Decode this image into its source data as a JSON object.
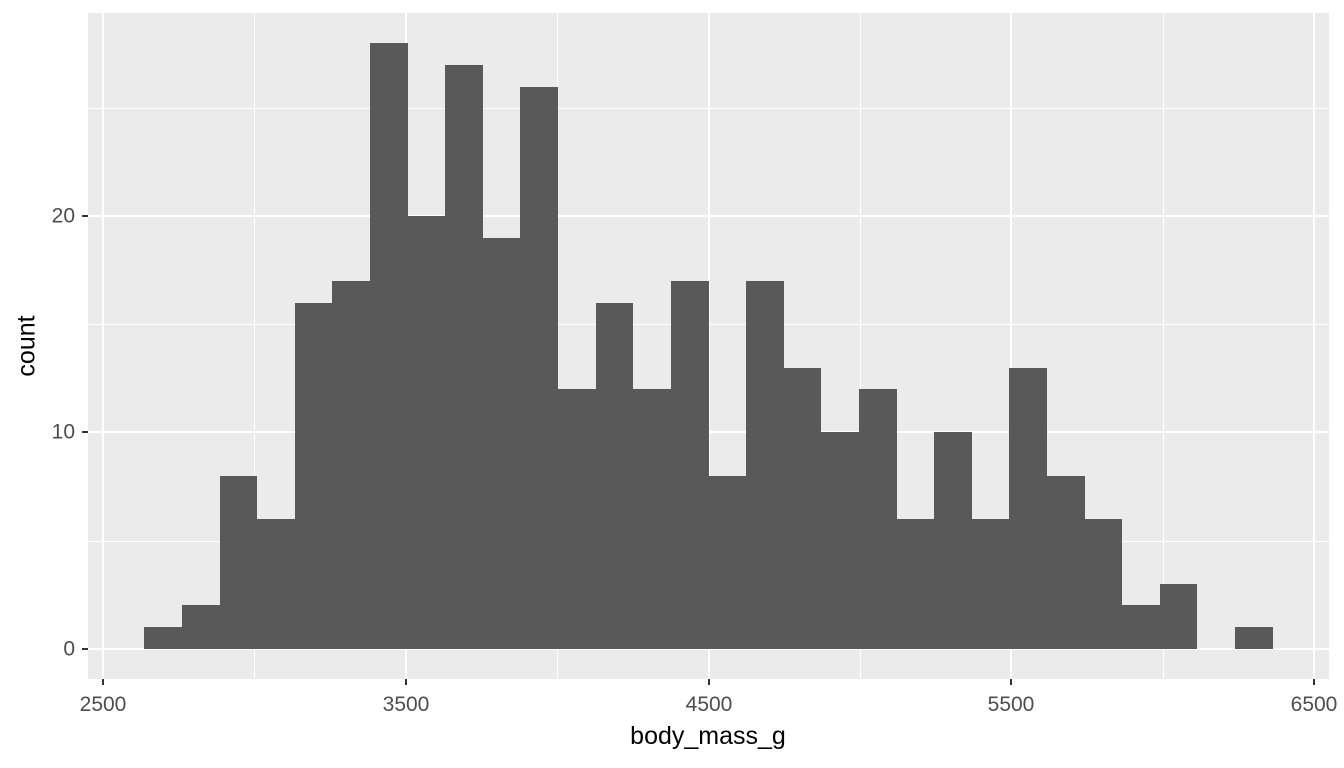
{
  "figure": {
    "background": "#FFFFFF",
    "panel_background": "#EBEBEB",
    "grid_color": "#FFFFFF",
    "bar_fill": "#595959",
    "tick_color": "#333333",
    "axis_text_color": "#4D4D4D",
    "axis_title_color": "#000000"
  },
  "chart_data": {
    "type": "bar",
    "subtype": "histogram",
    "title": "",
    "xlabel": "body_mass_g",
    "ylabel": "count",
    "xlim": [
      2451.7,
      6548.3
    ],
    "ylim": [
      -1.4,
      29.4
    ],
    "x_major_ticks": [
      2500,
      3500,
      4500,
      5500,
      6500
    ],
    "x_minor_ticks": [
      3000,
      4000,
      5000,
      6000
    ],
    "y_major_ticks": [
      0,
      10,
      20
    ],
    "y_minor_ticks": [
      5,
      15,
      25
    ],
    "grid": "on",
    "legend": "none",
    "bin_start": 2637.93,
    "bin_width": 124.14,
    "counts": [
      1,
      2,
      8,
      6,
      16,
      17,
      28,
      20,
      27,
      19,
      26,
      12,
      16,
      12,
      17,
      8,
      17,
      13,
      10,
      12,
      6,
      10,
      6,
      13,
      8,
      6,
      2,
      3,
      0,
      1
    ]
  }
}
